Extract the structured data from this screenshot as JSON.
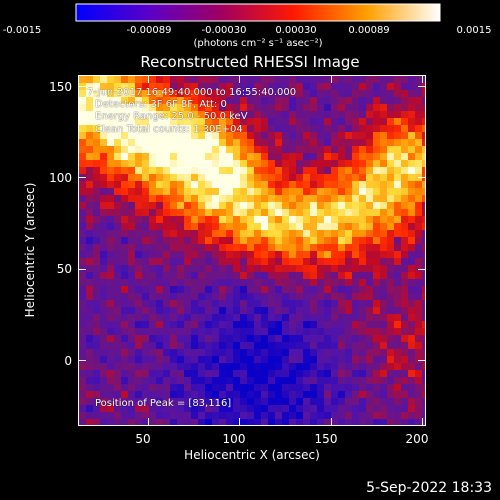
{
  "colorbar": {
    "ticks": [
      "-0.0015",
      "-0.00089",
      "-0.00030",
      "0.00030",
      "0.00089",
      "0.0015"
    ],
    "units": "(photons cm⁻² s⁻¹ asec⁻²)",
    "range": [
      -0.0015,
      0.0015
    ]
  },
  "title": "Reconstructed RHESSI Image",
  "annotations": {
    "line1": "7-Jun-2017 16:49:40.000 to 16:55:40.000",
    "line2": "Detectors: 3F 6F 8F, Att: 0",
    "line3": "Energy Range: 25.0 - 50.0 keV",
    "line4": "Clean    Total counts: 1.30E+04",
    "peak": "Position of Peak = [83,116]"
  },
  "footer_date": "5-Sep-2022 18:33",
  "chart_data": {
    "type": "heatmap",
    "title": "Reconstructed RHESSI Image",
    "xlabel": "Heliocentric X (arcsec)",
    "ylabel": "Heliocentric Y (arcsec)",
    "xlim": [
      12,
      202
    ],
    "ylim": [
      -36,
      156
    ],
    "xticks": [
      "50",
      "100",
      "150",
      "200"
    ],
    "yticks": [
      "0",
      "50",
      "100",
      "150"
    ],
    "xtick_values": [
      50,
      100,
      150,
      200
    ],
    "ytick_values": [
      0,
      50,
      100,
      150
    ],
    "colormap": "purple-red-yellow-white",
    "peak_position": [
      83,
      116
    ],
    "ridge_points": [
      [
        25,
        140
      ],
      [
        45,
        125
      ],
      [
        60,
        112
      ],
      [
        75,
        100
      ],
      [
        90,
        92
      ],
      [
        110,
        80
      ],
      [
        130,
        76
      ],
      [
        150,
        78
      ],
      [
        165,
        84
      ],
      [
        180,
        95
      ],
      [
        190,
        108
      ]
    ],
    "upper_blob": [
      [
        70,
        130
      ],
      [
        85,
        122
      ],
      [
        95,
        112
      ]
    ],
    "low_region_center": [
      110,
      -10
    ]
  }
}
